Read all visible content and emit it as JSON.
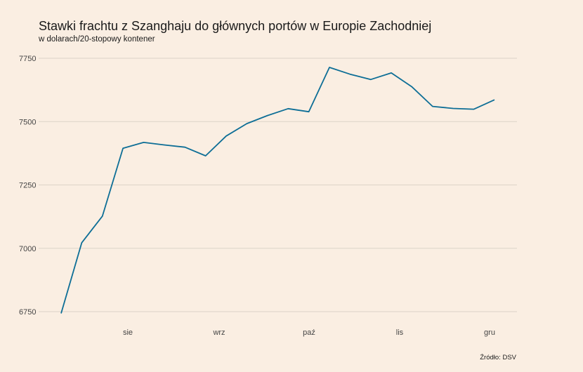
{
  "header": {
    "title": "Stawki frachtu z Szanghaju do głównych portów w Europie Zachodniej",
    "subtitle": "w dolarach/20-stopowy kontener"
  },
  "footer": {
    "source": "Źródło: DSV"
  },
  "chart_data": {
    "type": "line",
    "title": "Stawki frachtu z Szanghaju do głównych portów w Europie Zachodniej",
    "subtitle": "w dolarach/20-stopowy kontener",
    "xlabel": "",
    "ylabel": "",
    "x_ticks": [
      "sie",
      "wrz",
      "paź",
      "lis",
      "gru"
    ],
    "y_ticks": [
      6750,
      7000,
      7250,
      7500,
      7750
    ],
    "ylim": [
      6750,
      7750
    ],
    "grid": "horizontal",
    "line_color": "#0D6E96",
    "series": [
      {
        "values": [
          6743,
          7022,
          7127,
          7395,
          7418,
          7408,
          7399,
          7365,
          7443,
          7492,
          7524,
          7551,
          7539,
          7714,
          7687,
          7666,
          7692,
          7637,
          7560,
          7552,
          7549,
          7586
        ]
      }
    ]
  }
}
